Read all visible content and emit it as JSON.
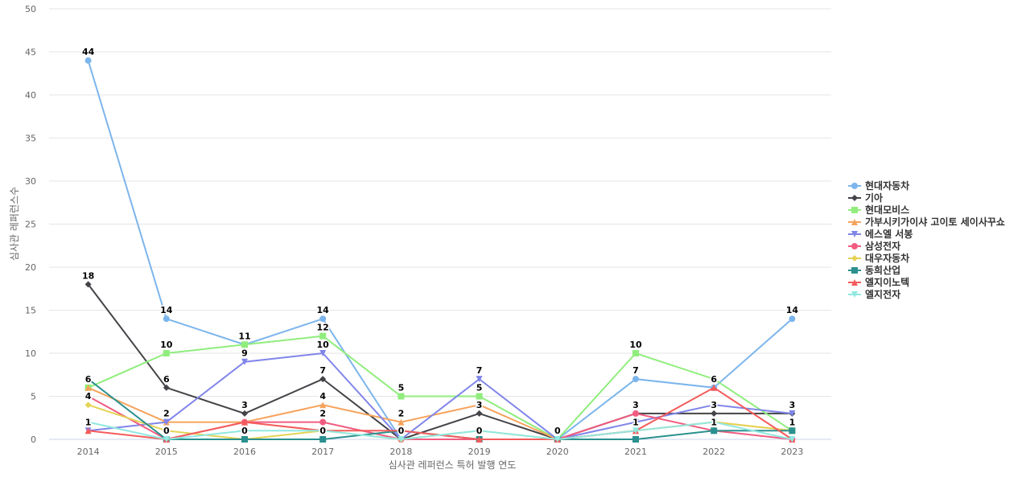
{
  "chart_data": {
    "type": "line",
    "y_axis_label": "심사관 레퍼런스수",
    "x_axis_label": "심사관 레퍼런스 특허 발행 연도",
    "categories": [
      "2014",
      "2015",
      "2016",
      "2017",
      "2018",
      "2019",
      "2020",
      "2021",
      "2022",
      "2023"
    ],
    "ylim": [
      0,
      50
    ],
    "yticks": [
      0,
      5,
      10,
      15,
      20,
      25,
      30,
      35,
      40,
      45,
      50
    ],
    "grid": true,
    "legend": "right",
    "series": [
      {
        "name": "현대자동차",
        "color": "#7cb5ec",
        "symbol": "circle",
        "values": [
          44,
          14,
          11,
          14,
          0,
          0,
          0,
          7,
          6,
          14
        ]
      },
      {
        "name": "기아",
        "color": "#434348",
        "symbol": "diamond",
        "values": [
          18,
          6,
          3,
          7,
          0,
          3,
          0,
          3,
          3,
          3
        ]
      },
      {
        "name": "현대모비스",
        "color": "#90ed7d",
        "symbol": "square",
        "values": [
          6,
          10,
          11,
          12,
          5,
          5,
          0,
          10,
          7,
          1
        ]
      },
      {
        "name": "가부시키가이샤 고이토 세이사꾸쇼",
        "color": "#f7a35c",
        "symbol": "triangle",
        "values": [
          6,
          2,
          2,
          4,
          2,
          4,
          0,
          1,
          2,
          1
        ]
      },
      {
        "name": "에스엘 서봉",
        "color": "#8085e9",
        "symbol": "triangle-down",
        "values": [
          1,
          2,
          9,
          10,
          0,
          7,
          0,
          2,
          4,
          3
        ]
      },
      {
        "name": "삼성전자",
        "color": "#f15c80",
        "symbol": "circle",
        "values": [
          5,
          0,
          2,
          2,
          0,
          0,
          0,
          3,
          1,
          0
        ]
      },
      {
        "name": "대우자동차",
        "color": "#e4d354",
        "symbol": "diamond",
        "values": [
          4,
          1,
          0,
          1,
          0,
          1,
          0,
          1,
          2,
          1
        ]
      },
      {
        "name": "동희산업",
        "color": "#2b908f",
        "symbol": "square",
        "values": [
          7,
          0,
          0,
          0,
          1,
          0,
          0,
          0,
          1,
          1
        ]
      },
      {
        "name": "엘지이노텍",
        "color": "#f45b5b",
        "symbol": "triangle",
        "values": [
          1,
          0,
          2,
          1,
          1,
          0,
          0,
          1,
          6,
          0
        ]
      },
      {
        "name": "엘지전자",
        "color": "#91e8e1",
        "symbol": "triangle-down",
        "values": [
          2,
          0,
          1,
          1,
          0,
          1,
          0,
          1,
          2,
          0
        ]
      }
    ]
  }
}
